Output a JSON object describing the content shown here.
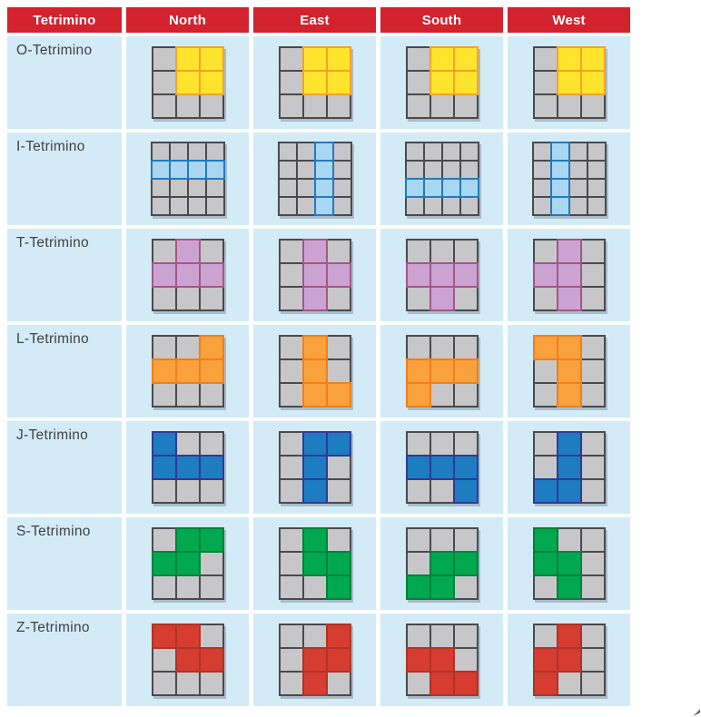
{
  "table": {
    "header_label": "Tetrimino",
    "orientations": [
      "North",
      "East",
      "South",
      "West"
    ],
    "colors": {
      "header_bg": "#D2232E",
      "header_text": "#FFFFFF",
      "row_bg": "#D2EBF7",
      "empty_cell_fill": "#C7C7C9",
      "empty_cell_stroke": "#4A4A4C"
    },
    "rows": [
      {
        "label": "O-Tetrimino",
        "grid_size": 3,
        "fill": "#FFE42E",
        "stroke": "#F5A327",
        "patterns": {
          "North": [
            [
              0,
              1,
              1
            ],
            [
              0,
              1,
              1
            ],
            [
              0,
              0,
              0
            ]
          ],
          "East": [
            [
              0,
              1,
              1
            ],
            [
              0,
              1,
              1
            ],
            [
              0,
              0,
              0
            ]
          ],
          "South": [
            [
              0,
              1,
              1
            ],
            [
              0,
              1,
              1
            ],
            [
              0,
              0,
              0
            ]
          ],
          "West": [
            [
              0,
              1,
              1
            ],
            [
              0,
              1,
              1
            ],
            [
              0,
              0,
              0
            ]
          ]
        }
      },
      {
        "label": "I-Tetrimino",
        "grid_size": 4,
        "fill": "#A9D7F2",
        "stroke": "#2279C0",
        "patterns": {
          "North": [
            [
              0,
              0,
              0,
              0
            ],
            [
              1,
              1,
              1,
              1
            ],
            [
              0,
              0,
              0,
              0
            ],
            [
              0,
              0,
              0,
              0
            ]
          ],
          "East": [
            [
              0,
              0,
              1,
              0
            ],
            [
              0,
              0,
              1,
              0
            ],
            [
              0,
              0,
              1,
              0
            ],
            [
              0,
              0,
              1,
              0
            ]
          ],
          "South": [
            [
              0,
              0,
              0,
              0
            ],
            [
              0,
              0,
              0,
              0
            ],
            [
              1,
              1,
              1,
              1
            ],
            [
              0,
              0,
              0,
              0
            ]
          ],
          "West": [
            [
              0,
              1,
              0,
              0
            ],
            [
              0,
              1,
              0,
              0
            ],
            [
              0,
              1,
              0,
              0
            ],
            [
              0,
              1,
              0,
              0
            ]
          ]
        }
      },
      {
        "label": "T-Tetrimino",
        "grid_size": 3,
        "fill": "#CBA3D3",
        "stroke": "#A25787",
        "patterns": {
          "North": [
            [
              0,
              1,
              0
            ],
            [
              1,
              1,
              1
            ],
            [
              0,
              0,
              0
            ]
          ],
          "East": [
            [
              0,
              1,
              0
            ],
            [
              0,
              1,
              1
            ],
            [
              0,
              1,
              0
            ]
          ],
          "South": [
            [
              0,
              0,
              0
            ],
            [
              1,
              1,
              1
            ],
            [
              0,
              1,
              0
            ]
          ],
          "West": [
            [
              0,
              1,
              0
            ],
            [
              1,
              1,
              0
            ],
            [
              0,
              1,
              0
            ]
          ]
        }
      },
      {
        "label": "L-Tetrimino",
        "grid_size": 3,
        "fill": "#F9A13C",
        "stroke": "#EF7F1A",
        "patterns": {
          "North": [
            [
              0,
              0,
              1
            ],
            [
              1,
              1,
              1
            ],
            [
              0,
              0,
              0
            ]
          ],
          "East": [
            [
              0,
              1,
              0
            ],
            [
              0,
              1,
              0
            ],
            [
              0,
              1,
              1
            ]
          ],
          "South": [
            [
              0,
              0,
              0
            ],
            [
              1,
              1,
              1
            ],
            [
              1,
              0,
              0
            ]
          ],
          "West": [
            [
              1,
              1,
              0
            ],
            [
              0,
              1,
              0
            ],
            [
              0,
              1,
              0
            ]
          ]
        }
      },
      {
        "label": "J-Tetrimino",
        "grid_size": 3,
        "fill": "#1E7CC0",
        "stroke": "#2E3A97",
        "patterns": {
          "North": [
            [
              1,
              0,
              0
            ],
            [
              1,
              1,
              1
            ],
            [
              0,
              0,
              0
            ]
          ],
          "East": [
            [
              0,
              1,
              1
            ],
            [
              0,
              1,
              0
            ],
            [
              0,
              1,
              0
            ]
          ],
          "South": [
            [
              0,
              0,
              0
            ],
            [
              1,
              1,
              1
            ],
            [
              0,
              0,
              1
            ]
          ],
          "West": [
            [
              0,
              1,
              0
            ],
            [
              0,
              1,
              0
            ],
            [
              1,
              1,
              0
            ]
          ]
        }
      },
      {
        "label": "S-Tetrimino",
        "grid_size": 3,
        "fill": "#00A94F",
        "stroke": "#00813C",
        "patterns": {
          "North": [
            [
              0,
              1,
              1
            ],
            [
              1,
              1,
              0
            ],
            [
              0,
              0,
              0
            ]
          ],
          "East": [
            [
              0,
              1,
              0
            ],
            [
              0,
              1,
              1
            ],
            [
              0,
              0,
              1
            ]
          ],
          "South": [
            [
              0,
              0,
              0
            ],
            [
              0,
              1,
              1
            ],
            [
              1,
              1,
              0
            ]
          ],
          "West": [
            [
              1,
              0,
              0
            ],
            [
              1,
              1,
              0
            ],
            [
              0,
              1,
              0
            ]
          ]
        }
      },
      {
        "label": "Z-Tetrimino",
        "grid_size": 3,
        "fill": "#D63C2F",
        "stroke": "#AE3327",
        "patterns": {
          "North": [
            [
              1,
              1,
              0
            ],
            [
              0,
              1,
              1
            ],
            [
              0,
              0,
              0
            ]
          ],
          "East": [
            [
              0,
              0,
              1
            ],
            [
              0,
              1,
              1
            ],
            [
              0,
              1,
              0
            ]
          ],
          "South": [
            [
              0,
              0,
              0
            ],
            [
              1,
              1,
              0
            ],
            [
              0,
              1,
              1
            ]
          ],
          "West": [
            [
              0,
              1,
              0
            ],
            [
              1,
              1,
              0
            ],
            [
              1,
              0,
              0
            ]
          ]
        }
      }
    ]
  }
}
